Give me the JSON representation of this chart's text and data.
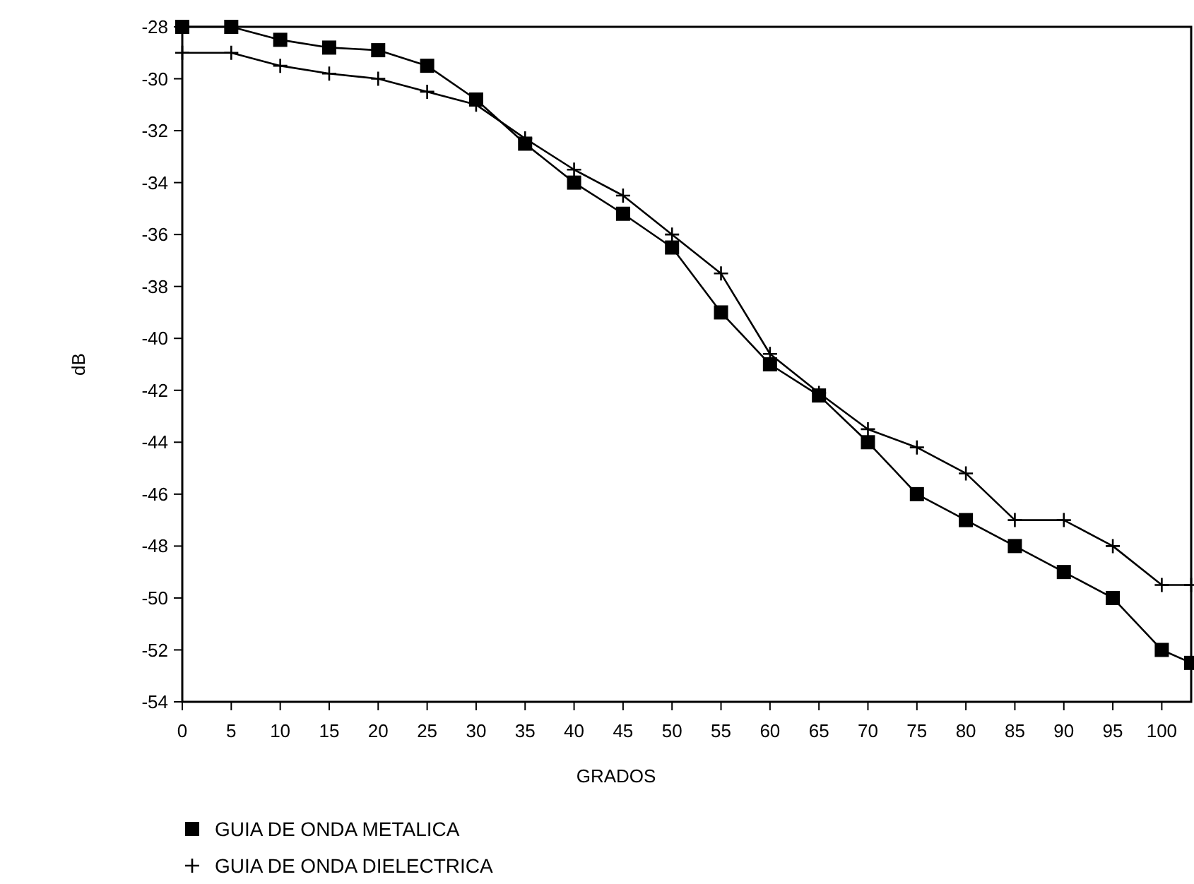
{
  "chart_data": {
    "type": "line",
    "xlabel": "GRADOS",
    "ylabel": "dB",
    "x": [
      0,
      5,
      10,
      15,
      20,
      25,
      30,
      35,
      40,
      45,
      50,
      55,
      60,
      65,
      70,
      75,
      80,
      85,
      90,
      95,
      100,
      103
    ],
    "series": [
      {
        "name": "GUIA DE ONDA METALICA",
        "color": "#000000",
        "marker": "square",
        "values": [
          -28,
          -28,
          -28.5,
          -28.8,
          -28.9,
          -29.5,
          -30.8,
          -32.5,
          -34,
          -35.2,
          -36.5,
          -39,
          -41,
          -42.2,
          -44,
          -46,
          -47,
          -48,
          -49,
          -50,
          -52,
          -52.5
        ]
      },
      {
        "name": "GUIA DE ONDA DIELECTRICA",
        "color": "#000000",
        "marker": "cross",
        "values": [
          -29,
          -29,
          -29.5,
          -29.8,
          -30,
          -30.5,
          -31,
          -32.3,
          -33.5,
          -34.5,
          -36,
          -37.5,
          -40.6,
          -42.1,
          -43.5,
          -44.2,
          -45.2,
          -47,
          -47,
          -48,
          -49.5,
          -49.5
        ]
      }
    ],
    "xlim": [
      0,
      103
    ],
    "xticks": [
      0,
      5,
      10,
      15,
      20,
      25,
      30,
      35,
      40,
      45,
      50,
      55,
      60,
      65,
      70,
      75,
      80,
      85,
      90,
      95,
      100
    ],
    "ylim": [
      -54,
      -28
    ],
    "yticks": [
      -54,
      -52,
      -50,
      -48,
      -46,
      -44,
      -42,
      -40,
      -38,
      -36,
      -34,
      -32,
      -30,
      -28
    ],
    "grid": false,
    "legend": "bottom left"
  }
}
